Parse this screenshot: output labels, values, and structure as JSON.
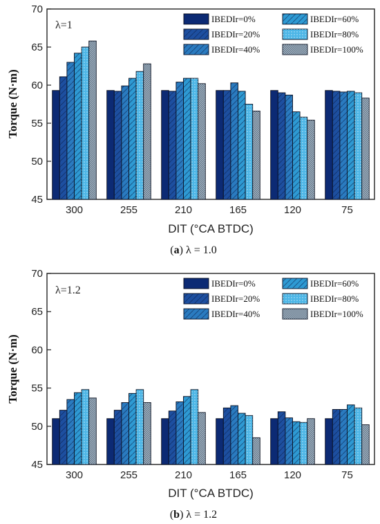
{
  "chart_data": [
    {
      "type": "bar",
      "panel_label": "a",
      "caption_text": "λ = 1.0",
      "annotation": "λ=1",
      "categories": [
        "300",
        "255",
        "210",
        "165",
        "120",
        "75"
      ],
      "xlabel": "DIT (°CA BTDC)",
      "ylabel": "Torque (N·m)",
      "ylim": [
        45,
        70
      ],
      "yticks": [
        45,
        50,
        55,
        60,
        65,
        70
      ],
      "grid": false,
      "legend_position": "top-right",
      "series": [
        {
          "name": "IBEDIr=0%",
          "values": [
            59.3,
            59.3,
            59.3,
            59.3,
            59.3,
            59.3
          ]
        },
        {
          "name": "IBEDIr=20%",
          "values": [
            61.1,
            59.2,
            59.2,
            59.3,
            59.0,
            59.2
          ]
        },
        {
          "name": "IBEDIr=40%",
          "values": [
            63.0,
            59.9,
            60.4,
            60.3,
            58.7,
            59.1
          ]
        },
        {
          "name": "IBEDIr=60%",
          "values": [
            64.2,
            60.9,
            60.9,
            59.2,
            56.5,
            59.2
          ]
        },
        {
          "name": "IBEDIr=80%",
          "values": [
            65.0,
            61.8,
            60.9,
            57.5,
            55.8,
            59.0
          ]
        },
        {
          "name": "IBEDIr=100%",
          "values": [
            65.8,
            62.8,
            60.2,
            56.6,
            55.4,
            58.3
          ]
        }
      ]
    },
    {
      "type": "bar",
      "panel_label": "b",
      "caption_text": "λ = 1.2",
      "annotation": "λ=1.2",
      "categories": [
        "300",
        "255",
        "210",
        "165",
        "120",
        "75"
      ],
      "xlabel": "DIT (°CA BTDC)",
      "ylabel": "Torque (N·m)",
      "ylim": [
        45,
        70
      ],
      "yticks": [
        45,
        50,
        55,
        60,
        65,
        70
      ],
      "grid": false,
      "legend_position": "top-right",
      "series": [
        {
          "name": "IBEDIr=0%",
          "values": [
            51.0,
            51.0,
            51.0,
            51.0,
            51.0,
            51.0
          ]
        },
        {
          "name": "IBEDIr=20%",
          "values": [
            52.1,
            52.1,
            52.0,
            52.4,
            51.9,
            52.2
          ]
        },
        {
          "name": "IBEDIr=40%",
          "values": [
            53.5,
            53.1,
            53.2,
            52.7,
            51.1,
            52.2
          ]
        },
        {
          "name": "IBEDIr=60%",
          "values": [
            54.4,
            54.3,
            53.9,
            51.7,
            50.6,
            52.8
          ]
        },
        {
          "name": "IBEDIr=80%",
          "values": [
            54.8,
            54.8,
            54.8,
            51.4,
            50.5,
            52.4
          ]
        },
        {
          "name": "IBEDIr=100%",
          "values": [
            53.7,
            53.1,
            51.8,
            48.5,
            51.0,
            50.2
          ]
        }
      ]
    }
  ],
  "colors": {
    "series": [
      "#0c2a74",
      "#1d4fa0",
      "#2a7bc0",
      "#2e9ad3",
      "#4db6e6",
      "#a7b8c7"
    ],
    "frame": "#222222"
  }
}
